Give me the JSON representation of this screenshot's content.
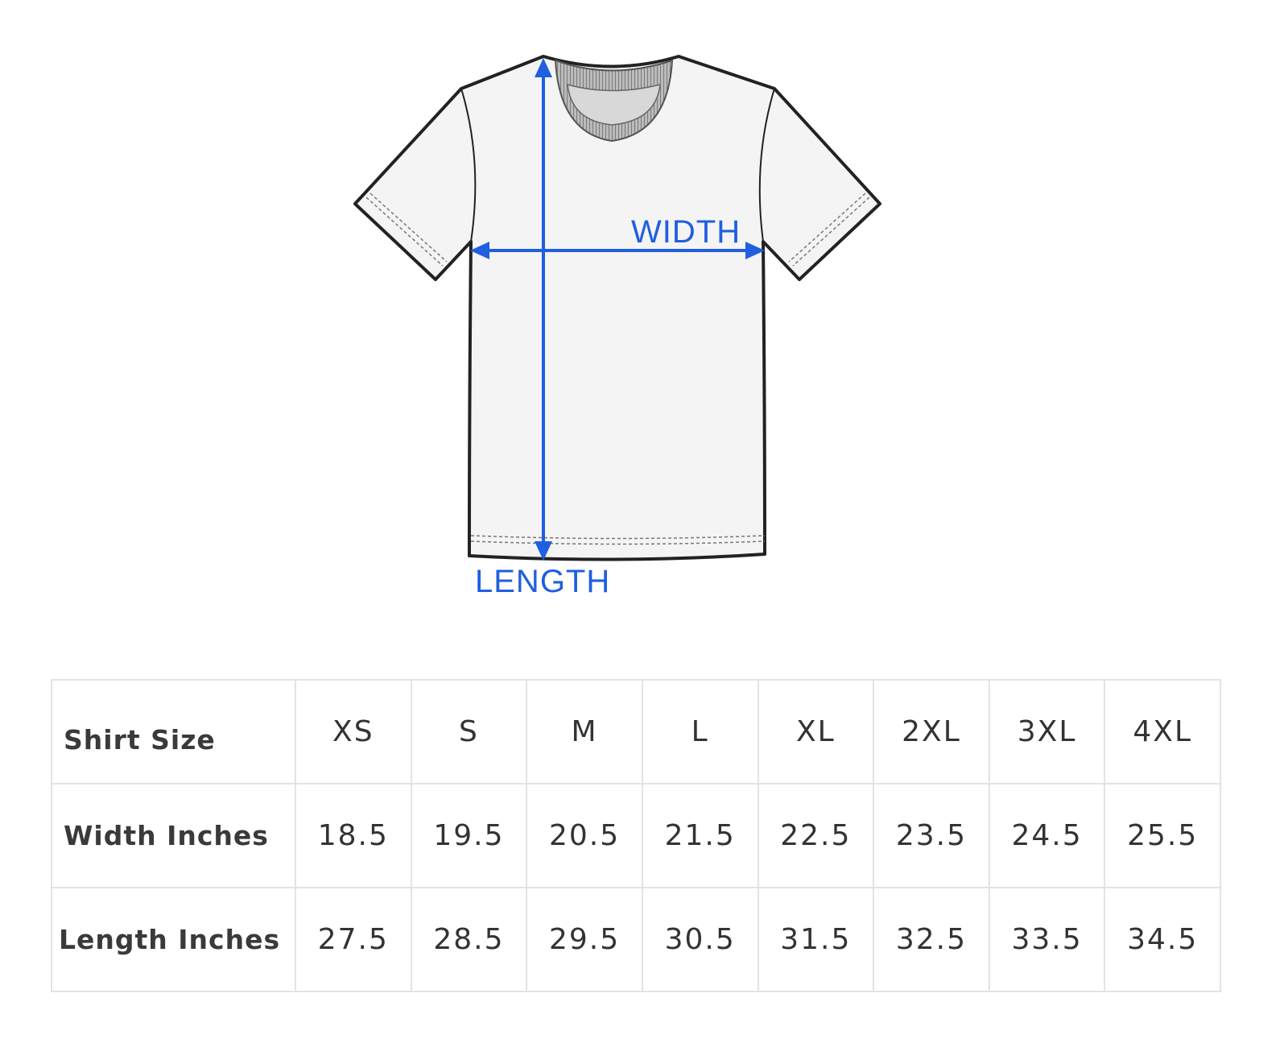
{
  "diagram": {
    "width_label": "WIDTH",
    "length_label": "LENGTH",
    "arrow_color": "#1f5fe0"
  },
  "table": {
    "header": {
      "label": "Shirt Size",
      "sizes": [
        "XS",
        "S",
        "M",
        "L",
        "XL",
        "2XL",
        "3XL",
        "4XL"
      ]
    },
    "rows": [
      {
        "label": "Width Inches",
        "values": [
          "18.5",
          "19.5",
          "20.5",
          "21.5",
          "22.5",
          "23.5",
          "24.5",
          "25.5"
        ]
      },
      {
        "label": "Length Inches",
        "values": [
          "27.5",
          "28.5",
          "29.5",
          "30.5",
          "31.5",
          "32.5",
          "33.5",
          "34.5"
        ]
      }
    ]
  }
}
